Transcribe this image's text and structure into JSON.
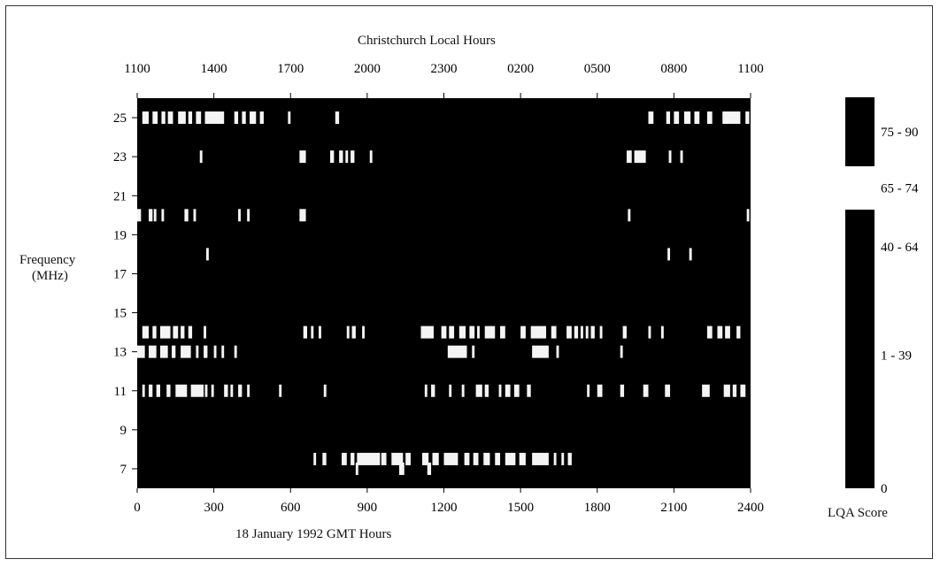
{
  "chart_data": {
    "type": "heatmap",
    "title": "Christchurch Local Hours",
    "xlabel": "18 January 1992 GMT Hours",
    "ylabel": [
      "Frequency",
      "(MHz)"
    ],
    "x_ticks": [
      "0",
      "300",
      "600",
      "900",
      "1200",
      "1500",
      "1800",
      "2100",
      "2400"
    ],
    "x_top_ticks": [
      "1100",
      "1400",
      "1700",
      "2000",
      "2300",
      "0200",
      "0500",
      "0800",
      "1100"
    ],
    "y_ticks": [
      "25",
      "23",
      "21",
      "19",
      "17",
      "15",
      "13",
      "11",
      "9",
      "7"
    ],
    "xlim": [
      0,
      2400
    ],
    "ylim": [
      6,
      26
    ],
    "colorbar": {
      "title": "LQA Score",
      "bins": [
        {
          "label": "75 - 90",
          "color": "#000000"
        },
        {
          "label": "65 - 74",
          "color": "#ffffff"
        },
        {
          "label": "40 - 64",
          "color": "#000000"
        },
        {
          "label": "1 - 39",
          "color": "#000000"
        },
        {
          "label": "0",
          "color": "#000000"
        }
      ]
    },
    "bands": [
      {
        "freq": 25,
        "gaps": [
          [
            20,
            45
          ],
          [
            60,
            80
          ],
          [
            95,
            110
          ],
          [
            120,
            140
          ],
          [
            160,
            190
          ],
          [
            200,
            215
          ],
          [
            230,
            250
          ],
          [
            265,
            340
          ],
          [
            380,
            395
          ],
          [
            410,
            425
          ],
          [
            440,
            465
          ],
          [
            480,
            495
          ],
          [
            590,
            600
          ],
          [
            775,
            790
          ],
          [
            2000,
            2020
          ],
          [
            2070,
            2085
          ],
          [
            2100,
            2120
          ],
          [
            2140,
            2165
          ],
          [
            2180,
            2200
          ],
          [
            2230,
            2250
          ],
          [
            2290,
            2360
          ],
          [
            2380,
            2395
          ]
        ]
      },
      {
        "freq": 23,
        "gaps": [
          [
            245,
            255
          ],
          [
            635,
            660
          ],
          [
            755,
            770
          ],
          [
            790,
            805
          ],
          [
            815,
            825
          ],
          [
            835,
            850
          ],
          [
            910,
            920
          ],
          [
            1915,
            1935
          ],
          [
            1945,
            1990
          ],
          [
            2080,
            2090
          ],
          [
            2125,
            2135
          ]
        ]
      },
      {
        "freq": 20,
        "gaps": [
          [
            0,
            15
          ],
          [
            45,
            60
          ],
          [
            65,
            75
          ],
          [
            95,
            105
          ],
          [
            185,
            200
          ],
          [
            220,
            230
          ],
          [
            395,
            405
          ],
          [
            430,
            440
          ],
          [
            635,
            660
          ],
          [
            1920,
            1930
          ],
          [
            2385,
            2395
          ]
        ]
      },
      {
        "freq": 18,
        "gaps": [
          [
            270,
            280
          ],
          [
            2075,
            2085
          ],
          [
            2160,
            2170
          ]
        ]
      },
      {
        "freq": 14,
        "gaps": [
          [
            20,
            45
          ],
          [
            60,
            75
          ],
          [
            90,
            130
          ],
          [
            140,
            160
          ],
          [
            170,
            185
          ],
          [
            200,
            215
          ],
          [
            260,
            270
          ],
          [
            650,
            665
          ],
          [
            680,
            690
          ],
          [
            710,
            720
          ],
          [
            820,
            830
          ],
          [
            840,
            855
          ],
          [
            880,
            890
          ],
          [
            1110,
            1160
          ],
          [
            1190,
            1210
          ],
          [
            1220,
            1240
          ],
          [
            1260,
            1285
          ],
          [
            1300,
            1320
          ],
          [
            1330,
            1340
          ],
          [
            1360,
            1400
          ],
          [
            1420,
            1440
          ],
          [
            1500,
            1520
          ],
          [
            1540,
            1600
          ],
          [
            1620,
            1640
          ],
          [
            1680,
            1700
          ],
          [
            1710,
            1725
          ],
          [
            1735,
            1745
          ],
          [
            1755,
            1765
          ],
          [
            1775,
            1790
          ],
          [
            1810,
            1820
          ],
          [
            1900,
            1915
          ],
          [
            2000,
            2010
          ],
          [
            2050,
            2060
          ],
          [
            2230,
            2250
          ],
          [
            2270,
            2290
          ],
          [
            2300,
            2320
          ],
          [
            2345,
            2360
          ]
        ]
      },
      {
        "freq": 13,
        "gaps": [
          [
            0,
            30
          ],
          [
            45,
            75
          ],
          [
            90,
            120
          ],
          [
            135,
            150
          ],
          [
            170,
            210
          ],
          [
            230,
            240
          ],
          [
            260,
            275
          ],
          [
            300,
            310
          ],
          [
            330,
            340
          ],
          [
            380,
            390
          ],
          [
            1215,
            1290
          ],
          [
            1310,
            1320
          ],
          [
            1545,
            1610
          ],
          [
            1640,
            1650
          ],
          [
            1890,
            1900
          ]
        ]
      },
      {
        "freq": 11,
        "gaps": [
          [
            20,
            30
          ],
          [
            45,
            60
          ],
          [
            75,
            90
          ],
          [
            115,
            130
          ],
          [
            150,
            195
          ],
          [
            210,
            260
          ],
          [
            265,
            275
          ],
          [
            290,
            300
          ],
          [
            340,
            355
          ],
          [
            365,
            375
          ],
          [
            395,
            410
          ],
          [
            430,
            440
          ],
          [
            555,
            565
          ],
          [
            730,
            740
          ],
          [
            1125,
            1135
          ],
          [
            1150,
            1165
          ],
          [
            1220,
            1230
          ],
          [
            1270,
            1280
          ],
          [
            1325,
            1350
          ],
          [
            1360,
            1375
          ],
          [
            1415,
            1425
          ],
          [
            1440,
            1460
          ],
          [
            1475,
            1495
          ],
          [
            1525,
            1540
          ],
          [
            1760,
            1770
          ],
          [
            1800,
            1820
          ],
          [
            1890,
            1905
          ],
          [
            1980,
            2000
          ],
          [
            2065,
            2085
          ],
          [
            2210,
            2240
          ],
          [
            2295,
            2320
          ],
          [
            2330,
            2345
          ],
          [
            2360,
            2380
          ]
        ]
      },
      {
        "freq": 7.5,
        "gaps": [
          [
            690,
            700
          ],
          [
            725,
            740
          ],
          [
            800,
            820
          ],
          [
            835,
            850
          ],
          [
            860,
            950
          ],
          [
            955,
            975
          ],
          [
            995,
            1040
          ],
          [
            1050,
            1070
          ],
          [
            1115,
            1140
          ],
          [
            1155,
            1180
          ],
          [
            1200,
            1255
          ],
          [
            1280,
            1300
          ],
          [
            1315,
            1335
          ],
          [
            1355,
            1380
          ],
          [
            1400,
            1420
          ],
          [
            1440,
            1480
          ],
          [
            1495,
            1520
          ],
          [
            1545,
            1610
          ],
          [
            1630,
            1640
          ],
          [
            1660,
            1670
          ],
          [
            1685,
            1700
          ]
        ]
      },
      {
        "freq": 7,
        "gaps": [
          [
            855,
            865
          ],
          [
            1025,
            1045
          ],
          [
            1135,
            1150
          ]
        ]
      }
    ]
  }
}
